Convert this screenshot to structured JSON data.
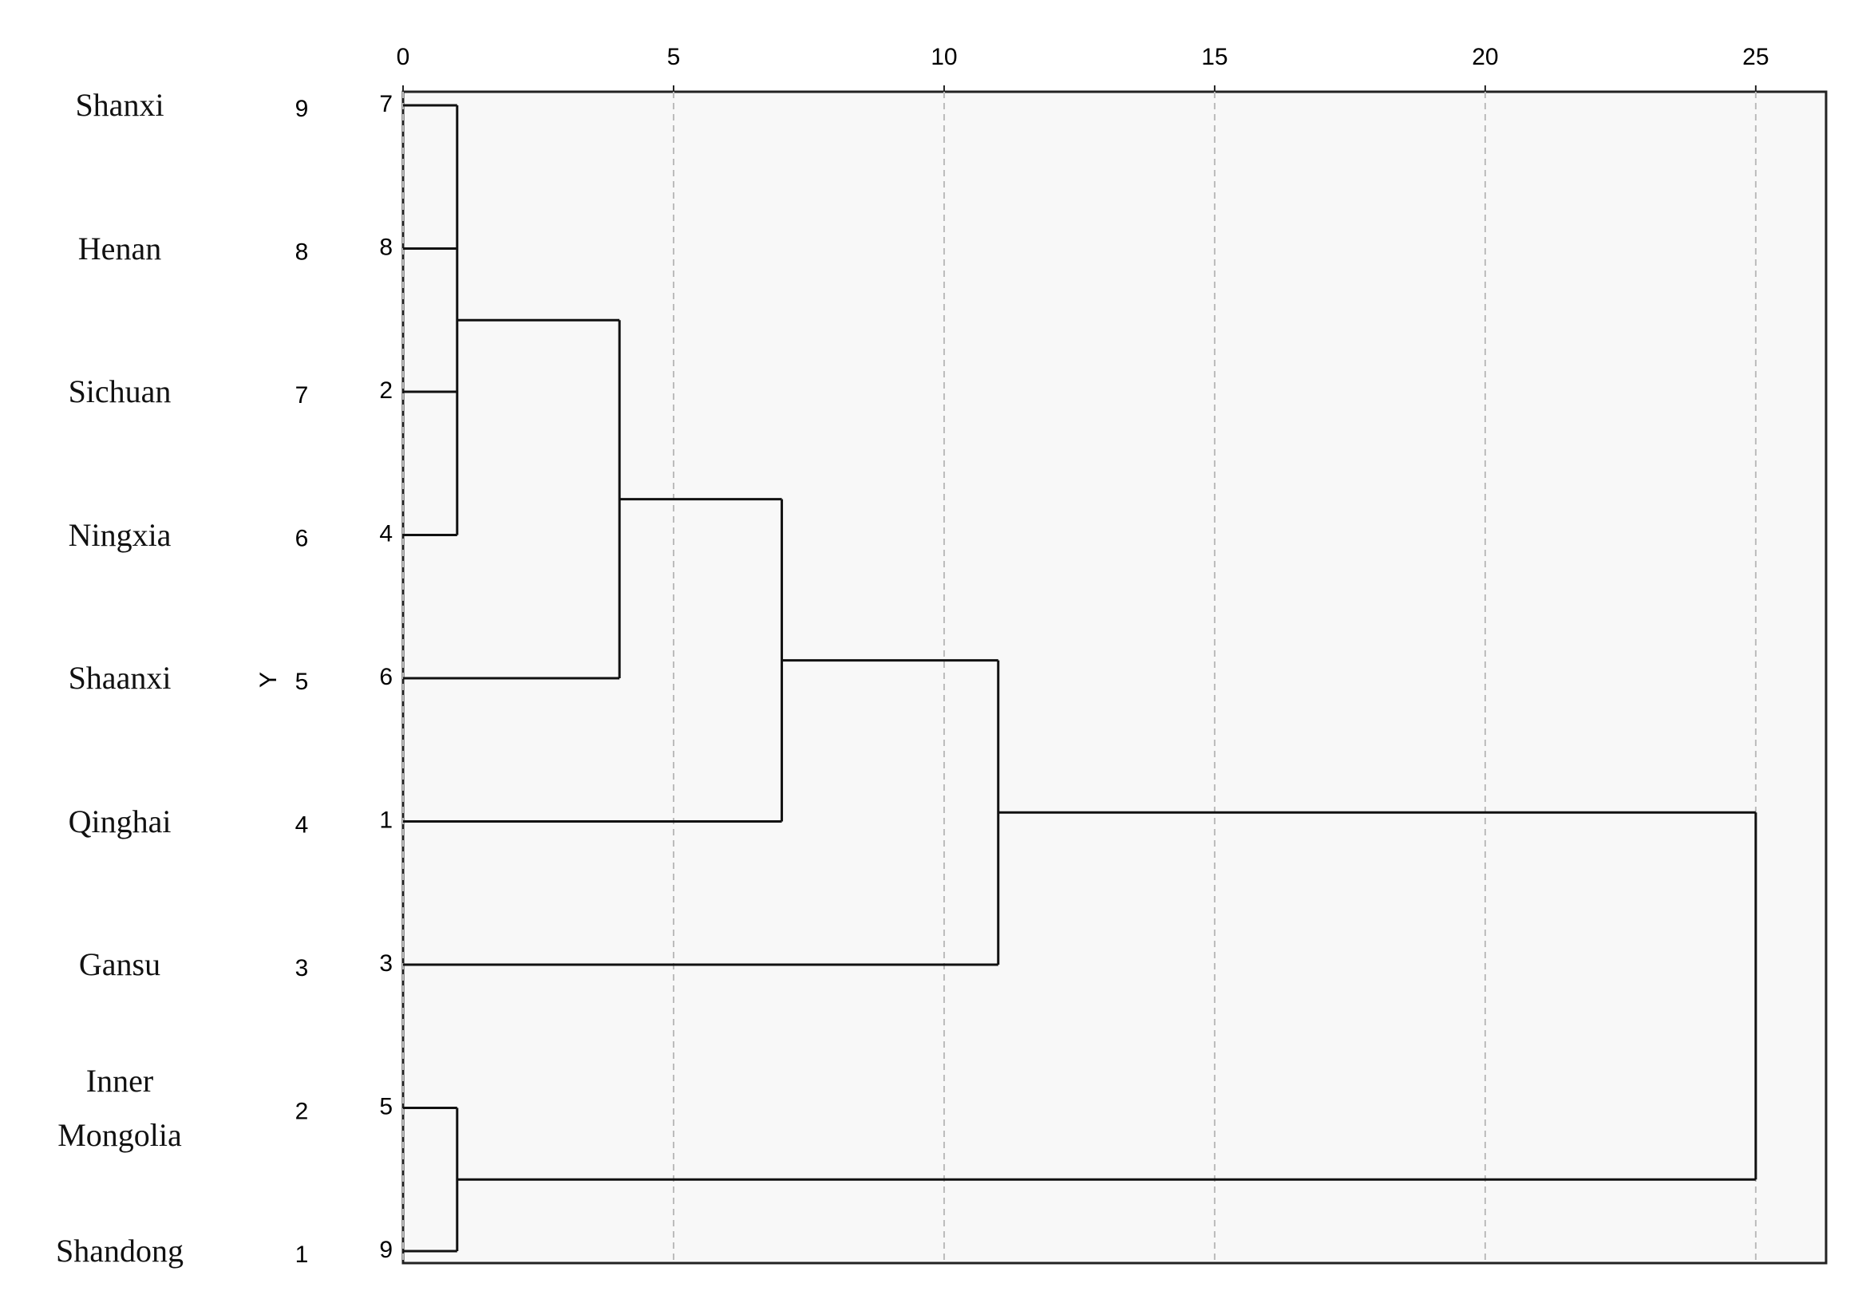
{
  "chart_data": {
    "type": "dendrogram",
    "names": [
      "Shanxi",
      "Henan",
      "Sichuan",
      "Ningxia",
      "Shaanxi",
      "Qinghai",
      "Gansu",
      "Inner Mongolia",
      "Shandong"
    ],
    "row_labels": [
      9,
      8,
      7,
      6,
      5,
      4,
      3,
      2,
      1
    ],
    "case_labels": [
      7,
      8,
      2,
      4,
      6,
      1,
      3,
      5,
      9
    ],
    "axis_marker": "Y",
    "merges": [
      {
        "height": 1,
        "children": [
          0,
          1,
          2,
          3
        ]
      },
      {
        "height": 4,
        "children": [
          9,
          4
        ]
      },
      {
        "height": 7,
        "children": [
          10,
          5
        ]
      },
      {
        "height": 11,
        "children": [
          11,
          6
        ]
      },
      {
        "height": 1,
        "children": [
          7,
          8
        ]
      },
      {
        "height": 25,
        "children": [
          12,
          13
        ]
      }
    ],
    "xlim": [
      0,
      26.3
    ],
    "xticks": [
      0,
      5,
      10,
      15,
      20,
      25
    ],
    "grid": true,
    "color": "#111111"
  }
}
